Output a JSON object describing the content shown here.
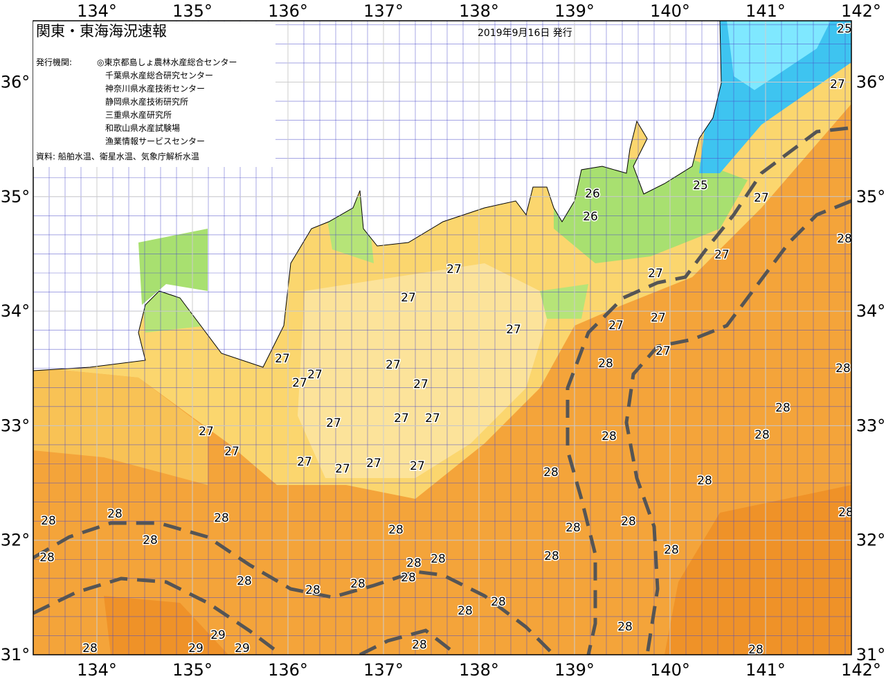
{
  "header": {
    "title": "関東・東海海況速報",
    "date": "2019年9月16日 発行"
  },
  "agencies": {
    "label": "発行機関:",
    "items": [
      "◎東京都島しょ農林水産総合センター",
      "千葉県水産総合研究センター",
      "神奈川県水産技術センター",
      "静岡県水産技術研究所",
      "三重県水産研究所",
      "和歌山県水産試験場",
      "漁業情報サービスセンター"
    ]
  },
  "source": "資料: 船舶水温、衛星水温、気象庁解析水温",
  "map": {
    "lon_ticks": [
      {
        "value": 134,
        "label": "134°"
      },
      {
        "value": 135,
        "label": "135°"
      },
      {
        "value": 136,
        "label": "136°"
      },
      {
        "value": 137,
        "label": "137°"
      },
      {
        "value": 138,
        "label": "138°"
      },
      {
        "value": 139,
        "label": "139°"
      },
      {
        "value": 140,
        "label": "140°"
      },
      {
        "value": 141,
        "label": "141°"
      },
      {
        "value": 142,
        "label": "142°"
      }
    ],
    "lat_ticks": [
      {
        "value": 31,
        "label": "31°"
      },
      {
        "value": 32,
        "label": "32°"
      },
      {
        "value": 33,
        "label": "33°"
      },
      {
        "value": 34,
        "label": "34°"
      },
      {
        "value": 35,
        "label": "35°"
      },
      {
        "value": 36,
        "label": "36°"
      }
    ],
    "isotherm_labels": [
      "25",
      "27",
      "25",
      "26",
      "26",
      "27",
      "28",
      "27",
      "27",
      "27",
      "27",
      "27",
      "27",
      "27",
      "27",
      "28",
      "28",
      "27",
      "27",
      "27",
      "27",
      "27",
      "27",
      "27",
      "27",
      "27",
      "27",
      "27",
      "27",
      "27",
      "27",
      "28",
      "28",
      "28",
      "28",
      "28",
      "28",
      "28",
      "28",
      "28",
      "28",
      "28",
      "28",
      "28",
      "28",
      "28",
      "28",
      "28",
      "28",
      "28",
      "28",
      "28",
      "28",
      "28",
      "28",
      "28",
      "29",
      "29",
      "29",
      "28",
      "28",
      "28"
    ]
  }
}
